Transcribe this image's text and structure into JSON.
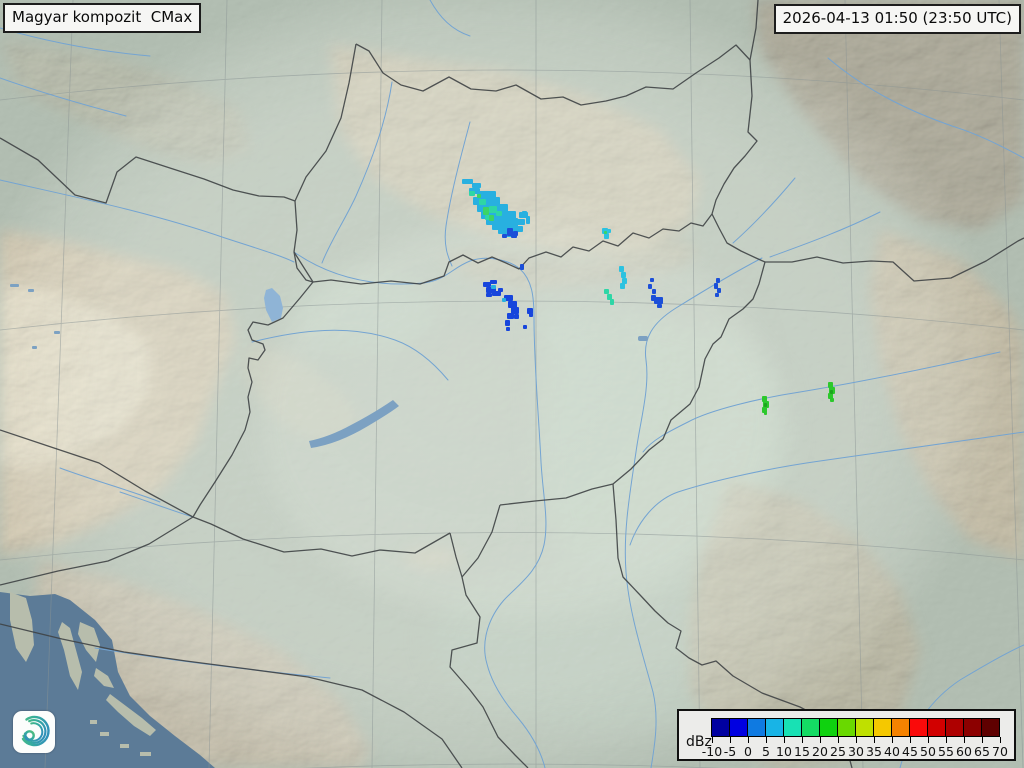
{
  "header": {
    "product_title": "Magyar kompozit  CMax",
    "timestamp": "2026-04-13 01:50 (23:50 UTC)"
  },
  "legend": {
    "unit": "dBz",
    "ticks": [
      "-10",
      "-5",
      "0",
      "5",
      "10",
      "15",
      "20",
      "25",
      "30",
      "35",
      "40",
      "45",
      "50",
      "55",
      "60",
      "65",
      "70"
    ],
    "colors": [
      "#0000a0",
      "#0000e1",
      "#0f7ae1",
      "#18b4e6",
      "#18e1b4",
      "#14dc64",
      "#0fd20f",
      "#69d900",
      "#bfe000",
      "#f5c800",
      "#f58200",
      "#fa0a0a",
      "#d20000",
      "#ae0000",
      "#8c0000",
      "#5f0000"
    ]
  },
  "branding": {
    "logo": "hungaromet-spiral-logo"
  },
  "radar_echoes": [
    {
      "id": "echo-a-cyan",
      "color": "#28b0e0",
      "cells": [
        [
          462,
          179,
          11,
          5
        ],
        [
          472,
          183,
          9,
          5
        ],
        [
          469,
          188,
          11,
          6
        ],
        [
          477,
          191,
          19,
          7
        ],
        [
          473,
          197,
          27,
          8
        ],
        [
          477,
          204,
          31,
          8
        ],
        [
          481,
          211,
          35,
          8
        ],
        [
          486,
          218,
          32,
          7
        ],
        [
          492,
          224,
          26,
          6
        ],
        [
          498,
          229,
          19,
          5
        ],
        [
          505,
          233,
          11,
          4
        ],
        [
          509,
          226,
          14,
          6
        ],
        [
          515,
          219,
          10,
          6
        ],
        [
          519,
          212,
          9,
          6
        ],
        [
          522,
          211,
          5,
          7
        ],
        [
          526,
          216,
          4,
          8
        ]
      ]
    },
    {
      "id": "echo-a-teal",
      "color": "#2ed6a6",
      "cells": [
        [
          469,
          191,
          6,
          5
        ],
        [
          479,
          199,
          7,
          6
        ],
        [
          489,
          206,
          8,
          7
        ],
        [
          485,
          215,
          6,
          5
        ],
        [
          496,
          211,
          6,
          5
        ]
      ]
    },
    {
      "id": "echo-a-green",
      "color": "#3cd465",
      "cells": [
        [
          483,
          207,
          6,
          8
        ],
        [
          489,
          215,
          5,
          6
        ],
        [
          477,
          194,
          4,
          4
        ]
      ]
    },
    {
      "id": "echo-a-blue",
      "color": "#1c4fd8",
      "cells": [
        [
          507,
          228,
          6,
          8
        ],
        [
          513,
          231,
          5,
          5
        ],
        [
          502,
          234,
          5,
          4
        ],
        [
          511,
          233,
          6,
          5
        ],
        [
          520,
          264,
          4,
          6
        ]
      ]
    },
    {
      "id": "echo-b-blue",
      "color": "#1745dc",
      "cells": [
        [
          483,
          282,
          8,
          5
        ],
        [
          486,
          287,
          10,
          6
        ],
        [
          490,
          280,
          7,
          4
        ],
        [
          492,
          291,
          9,
          5
        ],
        [
          498,
          288,
          5,
          4
        ],
        [
          486,
          293,
          6,
          4
        ],
        [
          504,
          295,
          9,
          6
        ],
        [
          508,
          301,
          9,
          7
        ],
        [
          511,
          307,
          8,
          7
        ],
        [
          507,
          313,
          7,
          6
        ],
        [
          514,
          314,
          5,
          5
        ],
        [
          527,
          308,
          6,
          6
        ],
        [
          529,
          313,
          4,
          4
        ],
        [
          505,
          320,
          5,
          6
        ],
        [
          506,
          327,
          4,
          4
        ],
        [
          523,
          325,
          4,
          4
        ]
      ]
    },
    {
      "id": "echo-b-cyan",
      "color": "#28b0e0",
      "cells": [
        [
          491,
          285,
          5,
          4
        ],
        [
          502,
          298,
          4,
          4
        ]
      ]
    },
    {
      "id": "echo-c-cyan",
      "color": "#2cc2e0",
      "cells": [
        [
          602,
          228,
          6,
          6
        ],
        [
          604,
          233,
          5,
          6
        ],
        [
          607,
          229,
          4,
          4
        ],
        [
          619,
          266,
          5,
          6
        ],
        [
          621,
          272,
          5,
          6
        ],
        [
          622,
          278,
          5,
          6
        ],
        [
          620,
          283,
          5,
          6
        ]
      ]
    },
    {
      "id": "echo-c-teal",
      "color": "#2ed6a6",
      "cells": [
        [
          604,
          289,
          5,
          5
        ],
        [
          607,
          294,
          5,
          6
        ],
        [
          610,
          299,
          4,
          6
        ]
      ]
    },
    {
      "id": "echo-c-green",
      "color": "#3cd465",
      "cells": [
        [
          604,
          231,
          3,
          3
        ]
      ]
    },
    {
      "id": "echo-c-blue",
      "color": "#1c4fd8",
      "cells": [
        [
          650,
          278,
          4,
          4
        ],
        [
          648,
          284,
          4,
          5
        ],
        [
          652,
          289,
          4,
          5
        ],
        [
          651,
          295,
          5,
          6
        ],
        [
          654,
          297,
          9,
          7
        ],
        [
          657,
          304,
          5,
          4
        ],
        [
          655,
          299,
          4,
          4
        ],
        [
          716,
          278,
          4,
          5
        ],
        [
          714,
          283,
          4,
          6
        ],
        [
          717,
          288,
          4,
          5
        ],
        [
          715,
          293,
          4,
          4
        ]
      ]
    },
    {
      "id": "echo-d-green",
      "color": "#2cc82c",
      "cells": [
        [
          762,
          396,
          5,
          6
        ],
        [
          763,
          401,
          6,
          7
        ],
        [
          762,
          407,
          5,
          6
        ],
        [
          764,
          412,
          3,
          3
        ],
        [
          828,
          382,
          5,
          6
        ],
        [
          829,
          387,
          6,
          7
        ],
        [
          828,
          393,
          5,
          6
        ],
        [
          830,
          398,
          4,
          4
        ]
      ]
    },
    {
      "id": "echo-d-darkgreen",
      "color": "#1ea41e",
      "cells": [
        [
          764,
          403,
          3,
          4
        ],
        [
          830,
          390,
          3,
          4
        ]
      ]
    }
  ]
}
